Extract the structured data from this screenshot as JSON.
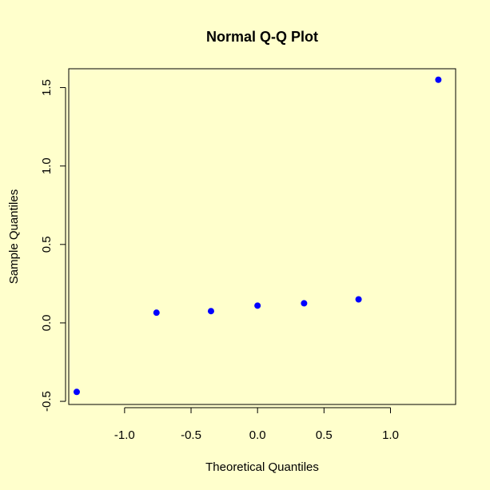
{
  "chart_data": {
    "type": "scatter",
    "title": "Normal Q-Q Plot",
    "xlabel": "Theoretical Quantiles",
    "ylabel": "Sample Quantiles",
    "xlim": [
      -1.42,
      1.49
    ],
    "ylim": [
      -0.52,
      1.62
    ],
    "xticks": [
      -1.0,
      -0.5,
      0.0,
      0.5,
      1.0
    ],
    "xtick_labels": [
      "-1.0",
      "-0.5",
      "0.0",
      "0.5",
      "1.0"
    ],
    "yticks": [
      -0.5,
      0.0,
      0.5,
      1.0,
      1.5
    ],
    "ytick_labels": [
      "-0.5",
      "0.0",
      "0.5",
      "1.0",
      "1.5"
    ],
    "grid": false,
    "series": [
      {
        "x": [
          -1.36,
          -0.76,
          -0.35,
          0.0,
          0.35,
          0.76,
          1.36
        ],
        "y": [
          -0.44,
          0.065,
          0.075,
          0.11,
          0.125,
          0.15,
          1.55
        ]
      }
    ],
    "colors": {
      "background": "#FFFFCC",
      "points": "#0000FF",
      "axes": "#000000"
    }
  }
}
